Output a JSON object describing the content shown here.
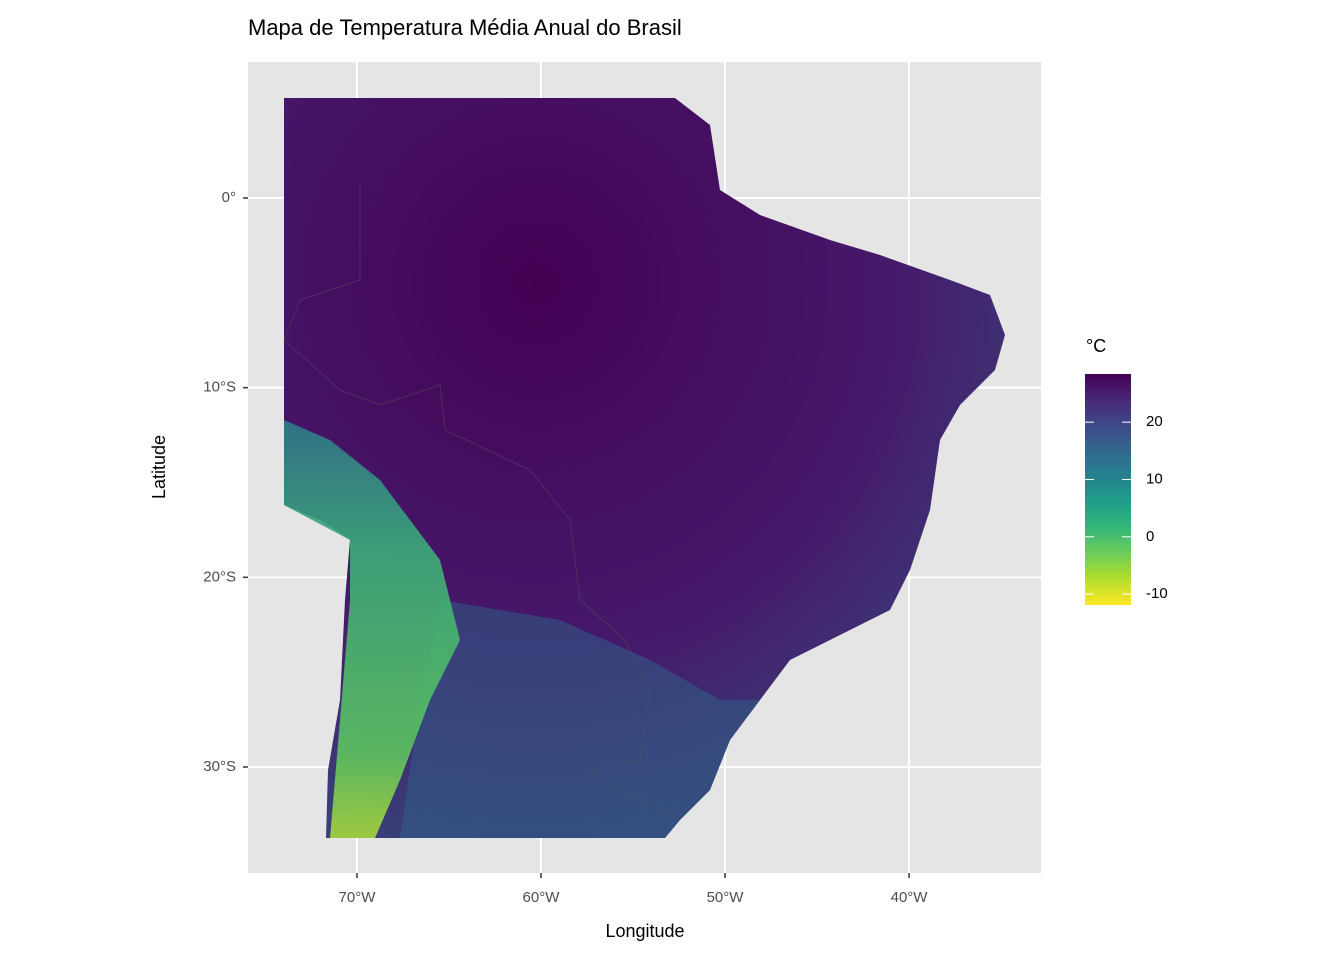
{
  "chart_data": {
    "type": "raster",
    "title": "Mapa de Temperatura Média Anual do Brasil",
    "x_label": "Longitude",
    "y_label": "Latitude",
    "xlim": [
      -75.92,
      -32.83
    ],
    "ylim": [
      -35.59,
      7.17
    ],
    "xticks": [
      {
        "value": -70,
        "label": "70°W"
      },
      {
        "value": -60,
        "label": "60°W"
      },
      {
        "value": -50,
        "label": "50°W"
      },
      {
        "value": -40,
        "label": "40°W"
      }
    ],
    "yticks": [
      {
        "value": -30,
        "label": "30°S"
      },
      {
        "value": -20,
        "label": "20°S"
      },
      {
        "value": -10,
        "label": "10°S"
      },
      {
        "value": 0,
        "label": "0°"
      }
    ],
    "grid": true,
    "colorbar": {
      "title": "°C",
      "limits": [
        -11.9,
        28.4
      ],
      "ticks": [
        -10,
        0,
        10,
        20
      ],
      "colors": [
        "#FDE725",
        "#B4DE2C",
        "#6DCD59",
        "#35B779",
        "#1F9E89",
        "#26828E",
        "#31688E",
        "#3E4A89",
        "#482878",
        "#440154"
      ]
    }
  }
}
